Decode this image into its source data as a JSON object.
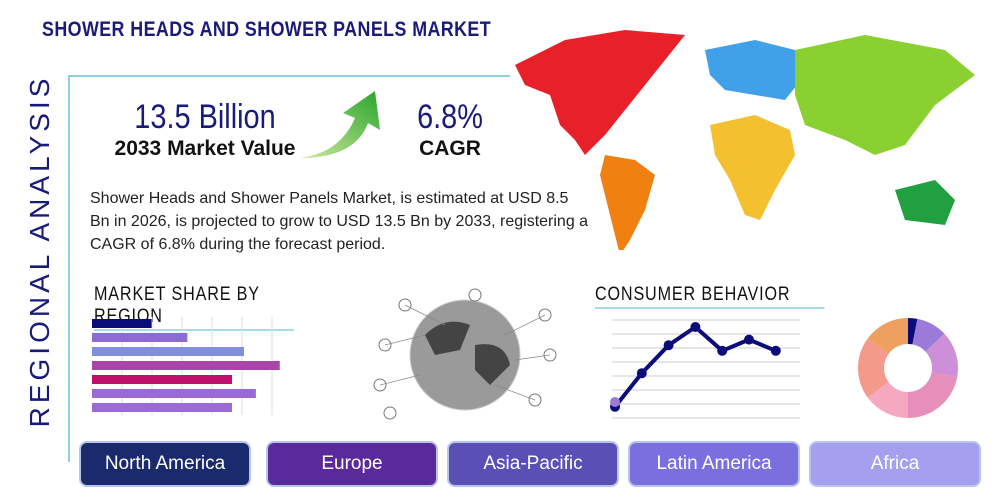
{
  "title": "SHOWER HEADS AND SHOWER PANELS MARKET",
  "side_label": "REGIONAL ANALYSIS",
  "market_value": {
    "value": "13.5 Billion",
    "label": "2033 Market Value"
  },
  "cagr": {
    "value": "6.8%",
    "label": "CAGR"
  },
  "description": "Shower Heads and Shower Panels Market, is estimated at USD 8.5 Bn in 2026, is projected to grow to USD 13.5 Bn by 2033, registering a CAGR of 6.8% during the forecast period.",
  "sections": {
    "market_share": "MARKET SHARE BY REGION",
    "consumer": "CONSUMER BEHAVIOR"
  },
  "tabs": [
    {
      "label": "North America",
      "color": "#1a2a6c"
    },
    {
      "label": "Europe",
      "color": "#5a2a9a"
    },
    {
      "label": "Asia-Pacific",
      "color": "#5a4fb5"
    },
    {
      "label": "Latin America",
      "color": "#7b6fe0"
    },
    {
      "label": "Africa",
      "color": "#a59ff0"
    }
  ],
  "chart_data": [
    {
      "type": "bar",
      "orientation": "horizontal",
      "values": [
        2,
        3.2,
        5.1,
        6.3,
        4.7,
        5.5,
        4.7
      ],
      "colors": [
        "#0b0b7a",
        "#8d6bd0",
        "#7f8fdc",
        "#a646a8",
        "#c0106e",
        "#9a6bd4",
        "#9a6bd4"
      ],
      "grid": true
    },
    {
      "type": "line",
      "values": [
        0.8,
        3.2,
        5.2,
        6.5,
        4.8,
        5.6,
        4.8
      ],
      "color": "#0b0b7a",
      "grid": true
    },
    {
      "type": "pie",
      "donut": true,
      "values": [
        3,
        10,
        15,
        22,
        15,
        20,
        15
      ],
      "colors": [
        "#0b0b7a",
        "#9b7bd8",
        "#cc8fd8",
        "#e68fba",
        "#f5a8c0",
        "#f39a8a",
        "#eda060"
      ]
    }
  ]
}
